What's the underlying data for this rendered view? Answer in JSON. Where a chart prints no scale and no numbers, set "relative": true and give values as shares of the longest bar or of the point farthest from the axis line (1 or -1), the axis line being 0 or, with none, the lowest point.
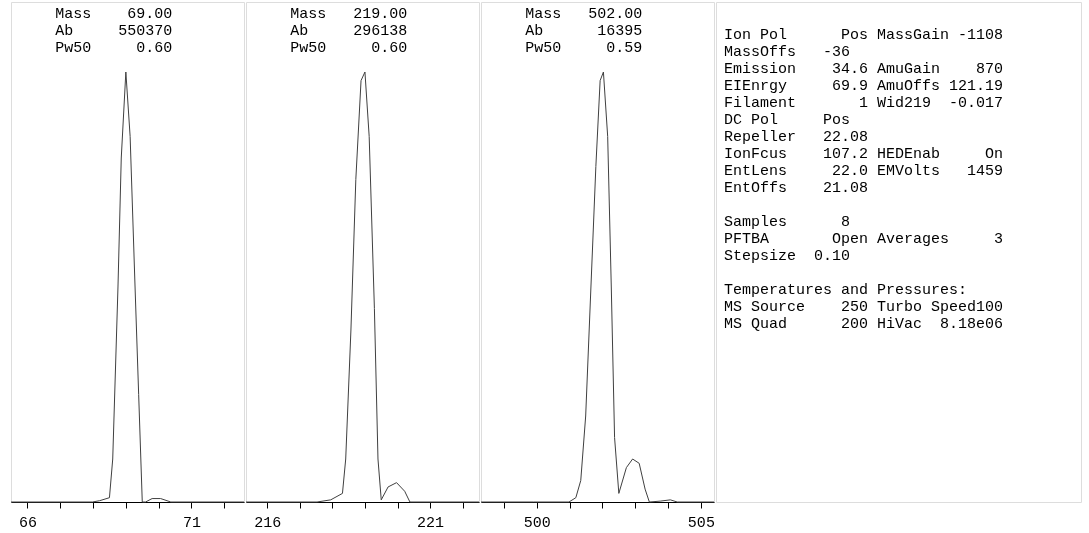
{
  "chart_data": [
    {
      "type": "line",
      "relative": true,
      "color": "#404040",
      "line_style": "solid",
      "grid": false,
      "tick_labels": "x",
      "annotations": [
        "Mass    69.00\nAb     550370\nPw50     0.60"
      ],
      "xlim": [
        65.5,
        72.6
      ],
      "xticks": [
        66,
        {
          "value": 67,
          "label": null
        },
        {
          "value": 68,
          "label": null
        },
        {
          "value": 69,
          "label": null
        },
        {
          "value": 70,
          "label": null
        },
        71,
        {
          "value": 72,
          "label": null
        }
      ],
      "x": [
        65.5,
        67.98,
        68.2,
        68.5,
        68.6,
        68.76,
        68.86,
        69.0,
        69.13,
        69.28,
        69.39,
        69.5,
        69.6,
        69.8,
        70.06,
        70.37,
        72.6
      ],
      "values": [
        0,
        0,
        0.003,
        0.01,
        0.1,
        0.5,
        0.8,
        1.0,
        0.85,
        0.5,
        0.25,
        0.0,
        0,
        0.008,
        0.008,
        0,
        0
      ]
    },
    {
      "type": "line",
      "relative": true,
      "color": "#404040",
      "line_style": "solid",
      "grid": false,
      "tick_labels": "x",
      "annotations": [
        "Mass   219.00\nAb     296138\nPw50     0.60"
      ],
      "xlim": [
        215.35,
        222.5
      ],
      "xticks": [
        216,
        {
          "value": 217,
          "label": null
        },
        {
          "value": 218,
          "label": null
        },
        {
          "value": 219,
          "label": null
        },
        {
          "value": 220,
          "label": null
        },
        221,
        {
          "value": 222,
          "label": null
        }
      ],
      "x": [
        215.35,
        217.53,
        217.95,
        218.31,
        218.41,
        218.57,
        218.72,
        218.88,
        219.0,
        219.13,
        219.29,
        219.4,
        219.5,
        219.71,
        219.97,
        220.22,
        220.38,
        222.5
      ],
      "values": [
        0,
        0,
        0.005,
        0.02,
        0.1,
        0.4,
        0.75,
        0.98,
        1.0,
        0.85,
        0.45,
        0.1,
        0.005,
        0.035,
        0.045,
        0.025,
        0,
        0
      ]
    },
    {
      "type": "line",
      "relative": true,
      "color": "#404040",
      "line_style": "solid",
      "grid": false,
      "tick_labels": "x",
      "annotations": [
        "Mass   502.00\nAb      16395\nPw50     0.59"
      ],
      "xlim": [
        498.3,
        505.4
      ],
      "xticks": [
        {
          "value": 499,
          "label": null
        },
        500,
        {
          "value": 501,
          "label": null
        },
        {
          "value": 502,
          "label": null
        },
        {
          "value": 503,
          "label": null
        },
        {
          "value": 504,
          "label": null
        },
        505
      ],
      "x": [
        498.3,
        499.9,
        500.98,
        501.19,
        501.34,
        501.49,
        501.65,
        501.8,
        501.93,
        502.03,
        502.16,
        502.27,
        502.37,
        502.5,
        502.73,
        502.92,
        503.12,
        503.3,
        503.43,
        503.76,
        504.07,
        504.28,
        505.4
      ],
      "values": [
        0,
        0,
        0,
        0.01,
        0.05,
        0.2,
        0.5,
        0.78,
        0.98,
        1.0,
        0.85,
        0.5,
        0.15,
        0.02,
        0.08,
        0.1,
        0.09,
        0.03,
        0,
        0.002,
        0.005,
        0,
        0
      ]
    },
    {
      "type": "other",
      "annotations": [
        "Ion Pol      Pos MassGain -1108\n                 MassOffs   -36\nEmission    34.6 AmuGain    870\nEIEnrgy     69.9 AmuOffs 121.19\nFilament       1 Wid219  -0.017\n                 DC Pol     Pos\nRepeller   22.08\nIonFcus    107.2 HEDEnab     On\nEntLens     22.0 EMVolts   1459\nEntOffs    21.08",
        "                 Samples      8\nPFTBA       Open Averages     3\n                 Stepsize  0.10",
        "Temperatures and Pressures:\nMS Source    250 Turbo Speed100\nMS Quad      200 HiVac  8.18e06"
      ]
    }
  ]
}
